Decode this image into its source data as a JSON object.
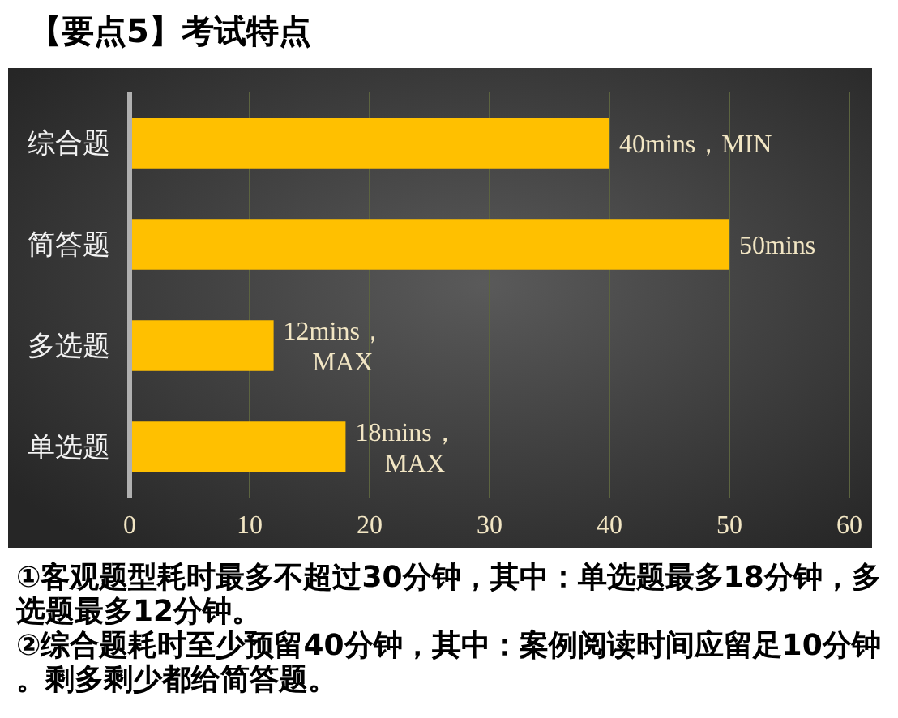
{
  "chart_data": {
    "type": "bar",
    "orientation": "horizontal",
    "title": "【要点5】考试特点",
    "categories": [
      "综合题",
      "简答题",
      "多选题",
      "单选题"
    ],
    "values": [
      40,
      50,
      12,
      18
    ],
    "color": "#ffc000",
    "value_labels": [
      "40mins，MIN",
      "50mins",
      "12mins，\nMAX",
      "18mins，\nMAX"
    ],
    "xlim": [
      0,
      60
    ],
    "xticks": [
      0,
      10,
      20,
      30,
      40,
      50,
      60
    ],
    "grid": "x",
    "annotations": [
      "①客观题型耗时最多不超过30分钟，其中：单选题最多18分钟，多选题最多12分钟。",
      "②综合题耗时至少预留40分钟，其中：案例阅读时间应留足10分钟。剩多剩少都给简答题。"
    ]
  }
}
